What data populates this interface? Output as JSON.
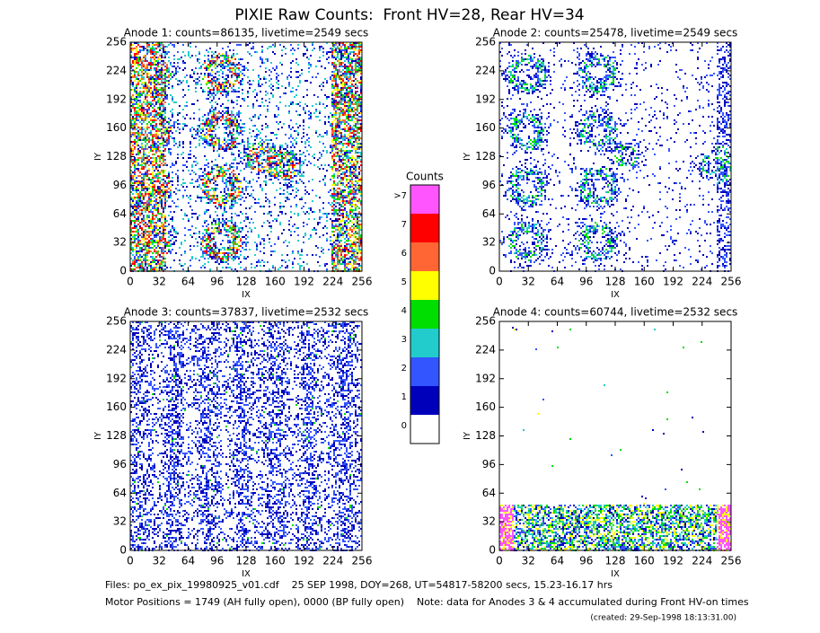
{
  "title": "PIXIE Raw Counts:  Front HV=28, Rear HV=34",
  "axes": {
    "xlabel": "IX",
    "ylabel": "IY",
    "xlim": [
      0,
      256
    ],
    "ylim": [
      0,
      256
    ],
    "xticks": [
      0,
      32,
      64,
      96,
      128,
      160,
      192,
      224,
      256
    ],
    "yticks": [
      0,
      32,
      64,
      96,
      128,
      160,
      192,
      224,
      256
    ]
  },
  "panels": [
    {
      "title": "Anode 1: counts=86135, livetime=2549 secs"
    },
    {
      "title": "Anode 2: counts=25478, livetime=2549 secs"
    },
    {
      "title": "Anode 3: counts=37837, livetime=2532 secs"
    },
    {
      "title": "Anode 4: counts=60744, livetime=2532 secs"
    }
  ],
  "colorbar": {
    "title": "Counts",
    "levels": [
      {
        "label": ">7",
        "color": "#ff55ff"
      },
      {
        "label": "7",
        "color": "#ff0000"
      },
      {
        "label": "6",
        "color": "#ff6633"
      },
      {
        "label": "5",
        "color": "#ffff00"
      },
      {
        "label": "4",
        "color": "#00dd00"
      },
      {
        "label": "3",
        "color": "#22cccc"
      },
      {
        "label": "2",
        "color": "#3355ff"
      },
      {
        "label": "1",
        "color": "#0000bb"
      },
      {
        "label": "0",
        "color": "#ffffff"
      }
    ]
  },
  "footer": {
    "files": "Files: po_ex_pix_19980925_v01.cdf    25 SEP 1998, DOY=268, UT=54817-58200 secs, 15.23-16.17 hrs",
    "motor": "Motor Positions = 1749 (AH fully open), 0000 (BP fully open)    Note: data for Anodes 3 & 4 accumulated during Front HV-on times",
    "created": "(created: 29-Sep-1998 18:13:31.00)"
  }
}
